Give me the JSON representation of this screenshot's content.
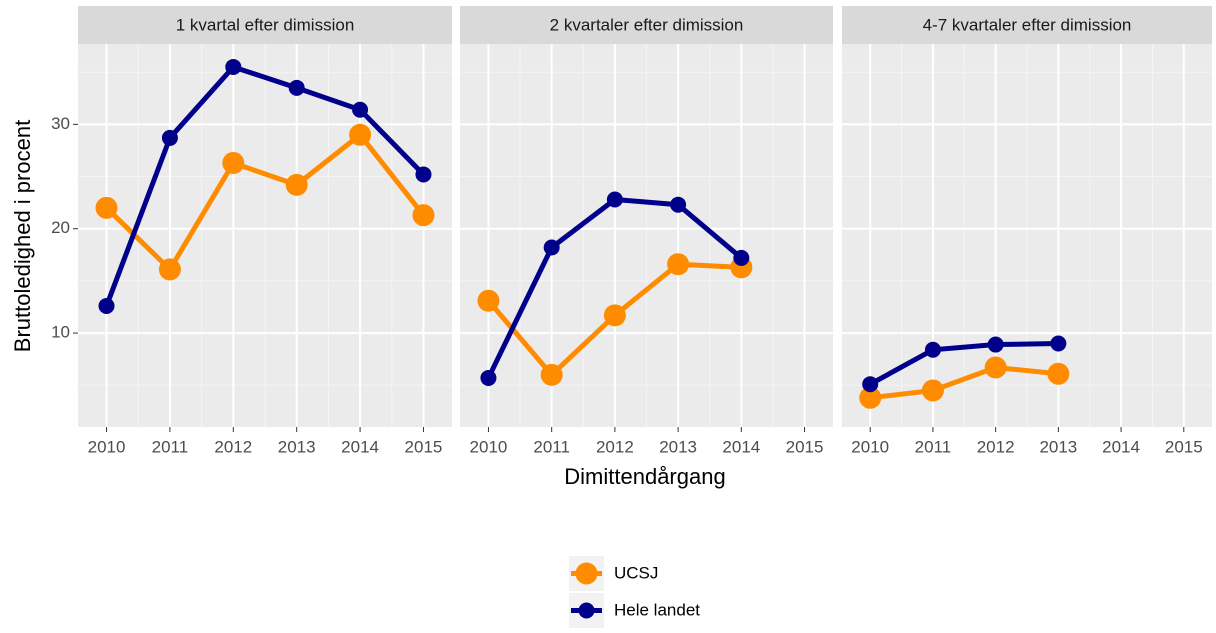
{
  "chart_data": {
    "type": "line",
    "x_label": "Dimittendårgang",
    "y_label": "Bruttoledighed i procent",
    "x": [
      2010,
      2011,
      2012,
      2013,
      2014,
      2015
    ],
    "xlim": [
      2009.55,
      2015.45
    ],
    "xticks": [
      2010,
      2011,
      2012,
      2013,
      2014,
      2015
    ],
    "ylim": [
      1.0,
      37.7
    ],
    "yticks": [
      10,
      20,
      30
    ],
    "grid": true,
    "series": [
      {
        "name": "UCSJ",
        "color": "#ff8c00"
      },
      {
        "name": "Hele landet",
        "color": "#00008b"
      }
    ],
    "facets": [
      {
        "title": "1 kvartal efter dimission",
        "values": [
          [
            22.0,
            16.1,
            26.3,
            24.2,
            29.0,
            21.3
          ],
          [
            12.6,
            28.7,
            35.5,
            33.5,
            31.4,
            25.2
          ]
        ]
      },
      {
        "title": "2 kvartaler efter dimission",
        "values": [
          [
            13.1,
            6.0,
            11.7,
            16.6,
            16.3,
            null
          ],
          [
            5.7,
            18.2,
            22.8,
            22.3,
            17.2,
            null
          ]
        ]
      },
      {
        "title": "4-7 kvartaler efter dimission",
        "values": [
          [
            3.8,
            4.5,
            6.7,
            6.1,
            null,
            null
          ],
          [
            5.1,
            8.4,
            8.9,
            9.0,
            null,
            null
          ]
        ]
      }
    ]
  }
}
